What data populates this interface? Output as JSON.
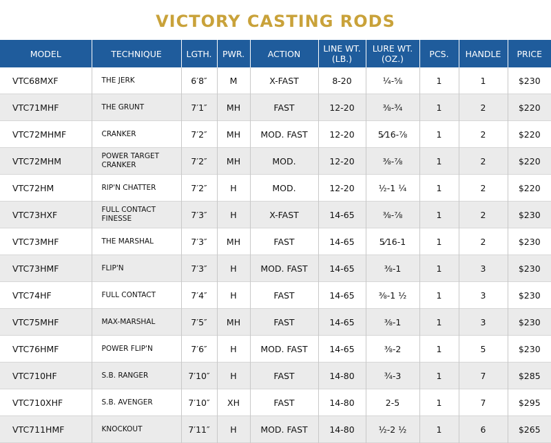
{
  "title": "VICTORY CASTING RODS",
  "table": {
    "header": [
      "MODEL",
      "TECHNIQUE",
      "LGTH.",
      "PWR.",
      "ACTION",
      "LINE WT.\n(LB.)",
      "LURE WT.\n(OZ.)",
      "PCS.",
      "HANDLE",
      "PRICE"
    ],
    "rows": [
      [
        "VTC68MXF",
        "THE JERK",
        "6′8″",
        "M",
        "X-FAST",
        "8-20",
        "¼-⅝",
        "1",
        "1",
        "$230"
      ],
      [
        "VTC71MHF",
        "THE GRUNT",
        "7′1″",
        "MH",
        "FAST",
        "12-20",
        "⅜-¾",
        "1",
        "2",
        "$220"
      ],
      [
        "VTC72MHMF",
        "CRANKER",
        "7′2″",
        "MH",
        "MOD. FAST",
        "12-20",
        "5⁄16-⅞",
        "1",
        "2",
        "$220"
      ],
      [
        "VTC72MHM",
        "POWER TARGET\nCRANKER",
        "7′2″",
        "MH",
        "MOD.",
        "12-20",
        "⅜-⅞",
        "1",
        "2",
        "$220"
      ],
      [
        "VTC72HM",
        "RIP'N CHATTER",
        "7′2″",
        "H",
        "MOD.",
        "12-20",
        "½-1 ¼",
        "1",
        "2",
        "$220"
      ],
      [
        "VTC73HXF",
        "FULL CONTACT\nFINESSE",
        "7′3″",
        "H",
        "X-FAST",
        "14-65",
        "⅜-⅞",
        "1",
        "2",
        "$230"
      ],
      [
        "VTC73MHF",
        "THE MARSHAL",
        "7′3″",
        "MH",
        "FAST",
        "14-65",
        "5⁄16-1",
        "1",
        "2",
        "$230"
      ],
      [
        "VTC73HMF",
        "FLIP'N",
        "7′3″",
        "H",
        "MOD. FAST",
        "14-65",
        "⅜-1",
        "1",
        "3",
        "$230"
      ],
      [
        "VTC74HF",
        "FULL CONTACT",
        "7′4″",
        "H",
        "FAST",
        "14-65",
        "⅜-1 ½",
        "1",
        "3",
        "$230"
      ],
      [
        "VTC75MHF",
        "MAX-MARSHAL",
        "7′5″",
        "MH",
        "FAST",
        "14-65",
        "⅜-1",
        "1",
        "3",
        "$230"
      ],
      [
        "VTC76HMF",
        "POWER FLIP'N",
        "7′6″",
        "H",
        "MOD. FAST",
        "14-65",
        "⅜-2",
        "1",
        "5",
        "$230"
      ],
      [
        "VTC710HF",
        "S.B. RANGER",
        "7′10″",
        "H",
        "FAST",
        "14-80",
        "¾-3",
        "1",
        "7",
        "$285"
      ],
      [
        "VTC710XHF",
        "S.B. AVENGER",
        "7′10″",
        "XH",
        "FAST",
        "14-80",
        "2-5",
        "1",
        "7",
        "$295"
      ],
      [
        "VTC711HMF",
        "KNOCKOUT",
        "7′11″",
        "H",
        "MOD. FAST",
        "14-80",
        "½-2 ½",
        "1",
        "6",
        "$265"
      ]
    ]
  }
}
